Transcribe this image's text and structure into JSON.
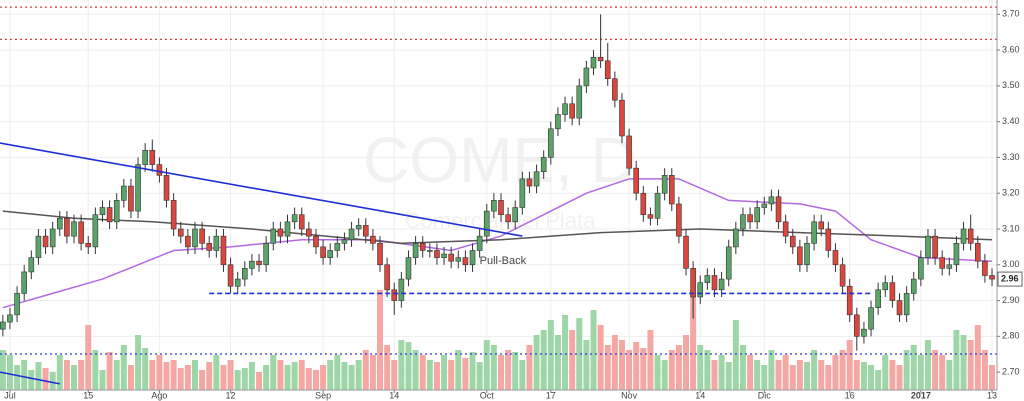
{
  "chart_data": {
    "type": "candlestick",
    "title": "COME, D",
    "subtitle": "Comercial del Plata",
    "open": [
      2.82,
      2.84,
      2.86,
      2.92,
      2.98,
      3.02,
      3.08,
      3.05,
      3.1,
      3.13,
      3.08,
      3.12,
      3.06,
      3.05,
      3.14,
      3.16,
      3.12,
      3.18,
      3.22,
      3.15,
      3.28,
      3.32,
      3.28,
      3.25,
      3.18,
      3.1,
      3.08,
      3.05,
      3.1,
      3.06,
      3.04,
      3.08,
      3.0,
      2.94,
      2.96,
      2.99,
      3.01,
      3.0,
      3.06,
      3.1,
      3.08,
      3.12,
      3.14,
      3.1,
      3.08,
      3.05,
      3.02,
      3.04,
      3.06,
      3.07,
      3.1,
      3.11,
      3.08,
      3.06,
      3.0,
      2.93,
      2.9,
      2.96,
      3.02,
      3.06,
      3.04,
      3.04,
      3.02,
      3.03,
      3.01,
      3.02,
      3.0,
      3.04,
      3.08,
      3.15,
      3.18,
      3.14,
      3.12,
      3.16,
      3.24,
      3.22,
      3.26,
      3.3,
      3.38,
      3.42,
      3.45,
      3.41,
      3.5,
      3.55,
      3.58,
      3.57,
      3.52,
      3.46,
      3.36,
      3.27,
      3.2,
      3.14,
      3.13,
      3.2,
      3.25,
      3.17,
      3.08,
      2.99,
      2.91,
      2.95,
      2.97,
      2.93,
      2.96,
      3.05,
      3.1,
      3.14,
      3.12,
      3.16,
      3.17,
      3.19,
      3.12,
      3.08,
      3.05,
      3.0,
      3.06,
      3.12,
      3.1,
      3.04,
      3.0,
      2.94,
      2.86,
      2.8,
      2.82,
      2.88,
      2.93,
      2.95,
      2.9,
      2.86,
      2.92,
      2.96,
      3.02,
      3.08,
      3.02,
      2.99,
      3.0,
      3.06,
      3.1,
      3.06,
      3.01,
      2.97
    ],
    "high": [
      2.86,
      2.88,
      2.94,
      3.0,
      3.04,
      3.1,
      3.1,
      3.12,
      3.15,
      3.15,
      3.14,
      3.14,
      3.08,
      3.16,
      3.18,
      3.18,
      3.2,
      3.24,
      3.24,
      3.3,
      3.34,
      3.35,
      3.3,
      3.27,
      3.2,
      3.12,
      3.1,
      3.12,
      3.12,
      3.08,
      3.1,
      3.1,
      3.02,
      2.98,
      3.01,
      3.03,
      3.03,
      3.08,
      3.12,
      3.12,
      3.14,
      3.16,
      3.16,
      3.12,
      3.1,
      3.07,
      3.06,
      3.08,
      3.09,
      3.12,
      3.13,
      3.13,
      3.1,
      3.08,
      3.02,
      2.95,
      2.98,
      3.04,
      3.08,
      3.08,
      3.06,
      3.06,
      3.05,
      3.05,
      3.04,
      3.04,
      3.06,
      3.1,
      3.17,
      3.2,
      3.2,
      3.16,
      3.18,
      3.26,
      3.26,
      3.28,
      3.32,
      3.4,
      3.44,
      3.47,
      3.47,
      3.52,
      3.57,
      3.6,
      3.7,
      3.62,
      3.54,
      3.48,
      3.38,
      3.29,
      3.22,
      3.16,
      3.22,
      3.27,
      3.27,
      3.19,
      3.1,
      3.01,
      2.97,
      2.99,
      2.99,
      2.98,
      3.07,
      3.12,
      3.16,
      3.16,
      3.18,
      3.19,
      3.21,
      3.21,
      3.14,
      3.1,
      3.07,
      3.08,
      3.14,
      3.14,
      3.12,
      3.06,
      3.02,
      2.96,
      2.88,
      2.84,
      2.9,
      2.95,
      2.97,
      2.97,
      2.92,
      2.94,
      2.98,
      3.04,
      3.1,
      3.1,
      3.04,
      3.02,
      3.08,
      3.12,
      3.14,
      3.08,
      3.03,
      2.99
    ],
    "low": [
      2.8,
      2.82,
      2.84,
      2.9,
      2.96,
      3.0,
      3.03,
      3.03,
      3.08,
      3.06,
      3.06,
      3.04,
      3.03,
      3.03,
      3.12,
      3.1,
      3.1,
      3.16,
      3.13,
      3.13,
      3.26,
      3.26,
      3.23,
      3.16,
      3.08,
      3.06,
      3.03,
      3.03,
      3.04,
      3.02,
      3.02,
      2.98,
      2.92,
      2.92,
      2.94,
      2.97,
      2.98,
      2.98,
      3.04,
      3.06,
      3.06,
      3.1,
      3.08,
      3.06,
      3.03,
      3.0,
      3.0,
      3.02,
      3.04,
      3.05,
      3.08,
      3.06,
      3.04,
      2.98,
      2.91,
      2.86,
      2.88,
      2.94,
      3.0,
      3.02,
      3.02,
      3.0,
      3.0,
      2.99,
      2.99,
      2.98,
      2.98,
      3.02,
      3.06,
      3.13,
      3.12,
      3.1,
      3.1,
      3.14,
      3.2,
      3.2,
      3.24,
      3.28,
      3.36,
      3.4,
      3.39,
      3.39,
      3.48,
      3.53,
      3.55,
      3.5,
      3.44,
      3.34,
      3.25,
      3.18,
      3.12,
      3.11,
      3.11,
      3.18,
      3.15,
      3.06,
      2.97,
      2.85,
      2.89,
      2.93,
      2.91,
      2.91,
      2.94,
      3.03,
      3.08,
      3.1,
      3.1,
      3.14,
      3.15,
      3.1,
      3.06,
      3.03,
      2.98,
      2.98,
      3.04,
      3.08,
      3.02,
      2.98,
      2.92,
      2.84,
      2.76,
      2.78,
      2.8,
      2.86,
      2.91,
      2.88,
      2.84,
      2.84,
      2.9,
      2.94,
      3.0,
      3.0,
      2.97,
      2.97,
      2.98,
      3.04,
      3.04,
      2.99,
      2.95,
      2.94
    ],
    "close": [
      2.84,
      2.86,
      2.92,
      2.98,
      3.02,
      3.08,
      3.05,
      3.1,
      3.13,
      3.08,
      3.12,
      3.06,
      3.05,
      3.14,
      3.16,
      3.12,
      3.18,
      3.22,
      3.15,
      3.28,
      3.32,
      3.28,
      3.25,
      3.18,
      3.1,
      3.08,
      3.05,
      3.1,
      3.06,
      3.04,
      3.08,
      3.0,
      2.94,
      2.96,
      2.99,
      3.01,
      3.0,
      3.06,
      3.1,
      3.08,
      3.12,
      3.14,
      3.1,
      3.08,
      3.05,
      3.02,
      3.04,
      3.06,
      3.07,
      3.1,
      3.11,
      3.08,
      3.06,
      3.0,
      2.93,
      2.9,
      2.96,
      3.02,
      3.06,
      3.04,
      3.04,
      3.02,
      3.03,
      3.01,
      3.02,
      3.0,
      3.04,
      3.08,
      3.15,
      3.18,
      3.14,
      3.12,
      3.16,
      3.24,
      3.22,
      3.26,
      3.3,
      3.38,
      3.42,
      3.45,
      3.41,
      3.5,
      3.55,
      3.58,
      3.57,
      3.52,
      3.46,
      3.36,
      3.27,
      3.2,
      3.14,
      3.13,
      3.2,
      3.25,
      3.17,
      3.08,
      2.99,
      2.91,
      2.95,
      2.97,
      2.93,
      2.96,
      3.05,
      3.1,
      3.14,
      3.12,
      3.16,
      3.17,
      3.19,
      3.12,
      3.08,
      3.05,
      3.0,
      3.06,
      3.12,
      3.1,
      3.04,
      3.0,
      2.94,
      2.86,
      2.8,
      2.82,
      2.88,
      2.93,
      2.95,
      2.9,
      2.86,
      2.92,
      2.96,
      3.02,
      3.08,
      3.02,
      2.99,
      3.0,
      3.06,
      3.1,
      3.06,
      3.01,
      2.97,
      2.96
    ],
    "volume": [
      40,
      35,
      25,
      30,
      20,
      28,
      22,
      18,
      35,
      30,
      25,
      30,
      65,
      40,
      20,
      38,
      30,
      45,
      25,
      55,
      42,
      30,
      35,
      28,
      30,
      22,
      25,
      30,
      20,
      28,
      35,
      25,
      30,
      20,
      22,
      28,
      18,
      25,
      35,
      30,
      25,
      28,
      30,
      22,
      20,
      25,
      30,
      35,
      28,
      25,
      30,
      40,
      35,
      100,
      45,
      30,
      50,
      48,
      40,
      35,
      30,
      28,
      35,
      30,
      40,
      32,
      38,
      28,
      50,
      45,
      35,
      40,
      38,
      30,
      45,
      55,
      60,
      70,
      55,
      75,
      60,
      72,
      50,
      80,
      65,
      45,
      55,
      50,
      40,
      48,
      42,
      60,
      35,
      30,
      40,
      45,
      55,
      100,
      45,
      40,
      30,
      35,
      28,
      70,
      45,
      35,
      30,
      25,
      40,
      30,
      35,
      25,
      30,
      28,
      40,
      30,
      25,
      35,
      40,
      50,
      30,
      28,
      25,
      20,
      35,
      30,
      25,
      40,
      45,
      35,
      50,
      40,
      35,
      30,
      60,
      55,
      50,
      65,
      40,
      25
    ],
    "up_color": "#5aa469",
    "down_color": "#d9473f",
    "volume_up_color": "#9fd6a8",
    "volume_down_color": "#f4a7a3",
    "xlim": [
      -0.4,
      139.7
    ],
    "ylim": [
      2.65,
      3.74
    ],
    "vlim": [
      0,
      100
    ],
    "grid": true,
    "yticks": [
      {
        "value": 2.7,
        "label": "2.70"
      },
      {
        "value": 2.8,
        "label": "2.80"
      },
      {
        "value": 2.9,
        "label": "2.90"
      },
      {
        "value": 3.0,
        "label": "3.00"
      },
      {
        "value": 3.1,
        "label": "3.10"
      },
      {
        "value": 3.2,
        "label": "3.20"
      },
      {
        "value": 3.3,
        "label": "3.30"
      },
      {
        "value": 3.4,
        "label": "3.40"
      },
      {
        "value": 3.5,
        "label": "3.50"
      },
      {
        "value": 3.6,
        "label": "3.60"
      },
      {
        "value": 3.7,
        "label": "3.70"
      }
    ],
    "xticks": [
      {
        "value": 1,
        "label": "Jul"
      },
      {
        "value": 12,
        "label": "15"
      },
      {
        "value": 22,
        "label": "Ago"
      },
      {
        "value": 32,
        "label": "12"
      },
      {
        "value": 45,
        "label": "Sep"
      },
      {
        "value": 55,
        "label": "14"
      },
      {
        "value": 68,
        "label": "Oct"
      },
      {
        "value": 77,
        "label": "17"
      },
      {
        "value": 88,
        "label": "Nov"
      },
      {
        "value": 98,
        "label": "14"
      },
      {
        "value": 107,
        "label": "Dic"
      },
      {
        "value": 119,
        "label": "16"
      },
      {
        "value": 129,
        "label": "2017",
        "bold": true
      },
      {
        "value": 139,
        "label": "13"
      }
    ],
    "moving_averages": [
      {
        "color": "#b36ae2",
        "x": [
          0,
          7,
          14,
          19,
          24,
          32,
          42,
          52,
          63,
          70,
          76,
          82,
          88,
          95,
          102,
          112,
          117,
          122,
          129,
          139
        ],
        "values": [
          2.88,
          2.92,
          2.96,
          3.0,
          3.04,
          3.05,
          3.07,
          3.07,
          3.04,
          3.08,
          3.14,
          3.2,
          3.24,
          3.24,
          3.18,
          3.17,
          3.15,
          3.07,
          3.02,
          3.01
        ]
      },
      {
        "color": "#555555",
        "x": [
          0,
          10,
          21,
          35,
          56,
          70,
          84,
          98,
          112,
          126,
          139
        ],
        "values": [
          3.15,
          3.13,
          3.12,
          3.1,
          3.06,
          3.07,
          3.09,
          3.1,
          3.09,
          3.08,
          3.07
        ]
      }
    ],
    "trendlines": [
      {
        "color": "#1f2fd6",
        "style": "solid",
        "x": [
          -0.4,
          73
        ],
        "values": [
          3.34,
          3.08
        ]
      },
      {
        "color": "#1f2fd6",
        "style": "solid",
        "x": [
          -0.4,
          8
        ],
        "values": [
          2.7,
          2.667
        ]
      },
      {
        "color": "#1f2fd6",
        "style": "dashed",
        "x": [
          29,
          122
        ],
        "values": [
          2.92,
          2.92
        ]
      }
    ],
    "levels": [
      {
        "value": 3.72,
        "color": "#e03a3a"
      },
      {
        "value": 3.63,
        "color": "#e03a3a"
      }
    ],
    "volume_average": {
      "value": 36,
      "color": "#2a3ad6"
    },
    "annotations": [
      {
        "text": "Pull-Back",
        "x": 67,
        "y": 3.01,
        "color": "#3a48d6"
      }
    ],
    "price_marker": {
      "value": 2.96,
      "label": "2.96"
    }
  }
}
